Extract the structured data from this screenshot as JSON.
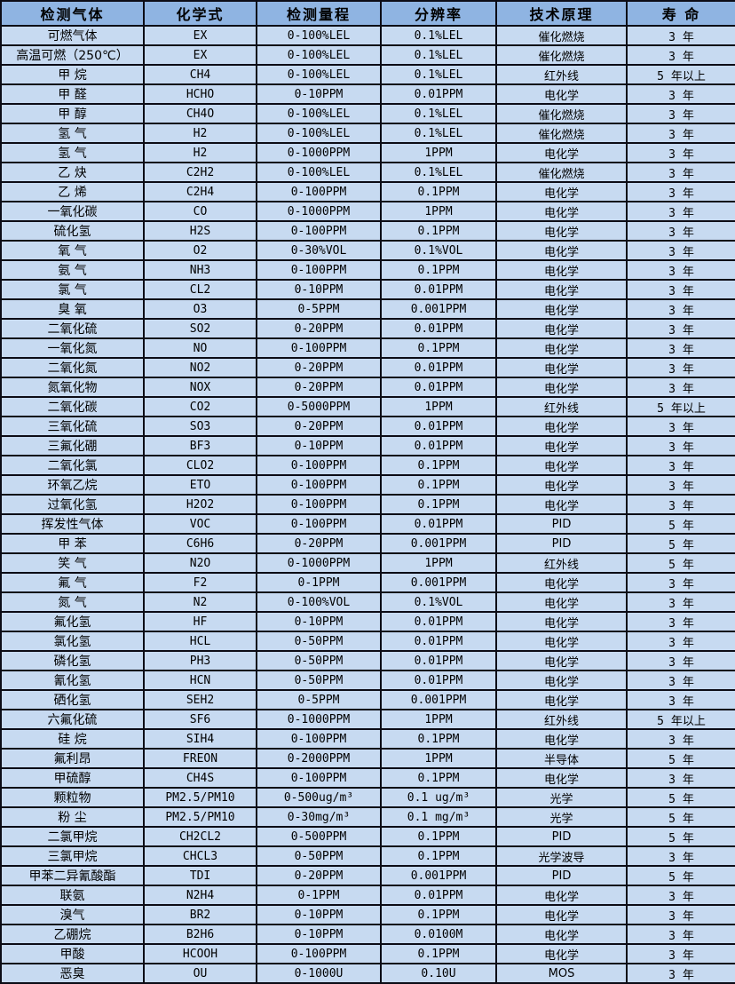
{
  "table": {
    "columns": [
      "检测气体",
      "化学式",
      "检测量程",
      "分辨率",
      "技术原理",
      "寿 命"
    ],
    "column_keys": [
      "gas",
      "formula",
      "range",
      "resolution",
      "principle",
      "life"
    ],
    "rows": [
      [
        "可燃气体",
        "EX",
        "0-100%LEL",
        "0.1%LEL",
        "催化燃烧",
        "3 年"
      ],
      [
        "高温可燃（250℃）",
        "EX",
        "0-100%LEL",
        "0.1%LEL",
        "催化燃烧",
        "3 年"
      ],
      [
        "甲 烷",
        "CH4",
        "0-100%LEL",
        "0.1%LEL",
        "红外线",
        "5 年以上"
      ],
      [
        "甲 醛",
        "HCHO",
        "0-10PPM",
        "0.01PPM",
        "电化学",
        "3 年"
      ],
      [
        "甲 醇",
        "CH4O",
        "0-100%LEL",
        "0.1%LEL",
        "催化燃烧",
        "3 年"
      ],
      [
        "氢 气",
        "H2",
        "0-100%LEL",
        "0.1%LEL",
        "催化燃烧",
        "3 年"
      ],
      [
        "氢 气",
        "H2",
        "0-1000PPM",
        "1PPM",
        "电化学",
        "3 年"
      ],
      [
        "乙 炔",
        "C2H2",
        "0-100%LEL",
        "0.1%LEL",
        "催化燃烧",
        "3 年"
      ],
      [
        "乙 烯",
        "C2H4",
        "0-100PPM",
        "0.1PPM",
        "电化学",
        "3 年"
      ],
      [
        "一氧化碳",
        "CO",
        "0-1000PPM",
        "1PPM",
        "电化学",
        "3 年"
      ],
      [
        "硫化氢",
        "H2S",
        "0-100PPM",
        "0.1PPM",
        "电化学",
        "3 年"
      ],
      [
        "氧 气",
        "O2",
        "0-30%VOL",
        "0.1%VOL",
        "电化学",
        "3 年"
      ],
      [
        "氨 气",
        "NH3",
        "0-100PPM",
        "0.1PPM",
        "电化学",
        "3 年"
      ],
      [
        "氯 气",
        "CL2",
        "0-10PPM",
        "0.01PPM",
        "电化学",
        "3 年"
      ],
      [
        "臭 氧",
        "O3",
        "0-5PPM",
        "0.001PPM",
        "电化学",
        "3 年"
      ],
      [
        "二氧化硫",
        "SO2",
        "0-20PPM",
        "0.01PPM",
        "电化学",
        "3 年"
      ],
      [
        "一氧化氮",
        "NO",
        "0-100PPM",
        "0.1PPM",
        "电化学",
        "3 年"
      ],
      [
        "二氧化氮",
        "NO2",
        "0-20PPM",
        "0.01PPM",
        "电化学",
        "3 年"
      ],
      [
        "氮氧化物",
        "NOX",
        "0-20PPM",
        "0.01PPM",
        "电化学",
        "3 年"
      ],
      [
        "二氧化碳",
        "CO2",
        "0-5000PPM",
        "1PPM",
        "红外线",
        "5 年以上"
      ],
      [
        "三氧化硫",
        "SO3",
        "0-20PPM",
        "0.01PPM",
        "电化学",
        "3 年"
      ],
      [
        "三氟化硼",
        "BF3",
        "0-10PPM",
        "0.01PPM",
        "电化学",
        "3 年"
      ],
      [
        "二氧化氯",
        "CLO2",
        "0-100PPM",
        "0.1PPM",
        "电化学",
        "3 年"
      ],
      [
        "环氧乙烷",
        "ETO",
        "0-100PPM",
        "0.1PPM",
        "电化学",
        "3 年"
      ],
      [
        "过氧化氢",
        "H2O2",
        "0-100PPM",
        "0.1PPM",
        "电化学",
        "3 年"
      ],
      [
        "挥发性气体",
        "VOC",
        "0-100PPM",
        "0.01PPM",
        "PID",
        "5 年"
      ],
      [
        "甲 苯",
        "C6H6",
        "0-20PPM",
        "0.001PPM",
        "PID",
        "5 年"
      ],
      [
        "笑 气",
        "N2O",
        "0-1000PPM",
        "1PPM",
        "红外线",
        "5 年"
      ],
      [
        "氟 气",
        "F2",
        "0-1PPM",
        "0.001PPM",
        "电化学",
        "3 年"
      ],
      [
        "氮 气",
        "N2",
        "0-100%VOL",
        "0.1%VOL",
        "电化学",
        "3 年"
      ],
      [
        "氟化氢",
        "HF",
        "0-10PPM",
        "0.01PPM",
        "电化学",
        "3 年"
      ],
      [
        "氯化氢",
        "HCL",
        "0-50PPM",
        "0.01PPM",
        "电化学",
        "3 年"
      ],
      [
        "磷化氢",
        "PH3",
        "0-50PPM",
        "0.01PPM",
        "电化学",
        "3 年"
      ],
      [
        "氰化氢",
        "HCN",
        "0-50PPM",
        "0.01PPM",
        "电化学",
        "3 年"
      ],
      [
        "硒化氢",
        "SEH2",
        "0-5PPM",
        "0.001PPM",
        "电化学",
        "3 年"
      ],
      [
        "六氟化硫",
        "SF6",
        "0-1000PPM",
        "1PPM",
        "红外线",
        "5 年以上"
      ],
      [
        "硅 烷",
        "SIH4",
        "0-100PPM",
        "0.1PPM",
        "电化学",
        "3 年"
      ],
      [
        "氟利昂",
        "FREON",
        "0-2000PPM",
        "1PPM",
        "半导体",
        "5 年"
      ],
      [
        "甲硫醇",
        "CH4S",
        "0-100PPM",
        "0.1PPM",
        "电化学",
        "3 年"
      ],
      [
        "颗粒物",
        "PM2.5/PM10",
        "0-500ug/m³",
        "0.1 ug/m³",
        "光学",
        "5 年"
      ],
      [
        "粉 尘",
        "PM2.5/PM10",
        "0-30mg/m³",
        "0.1 mg/m³",
        "光学",
        "5 年"
      ],
      [
        "二氯甲烷",
        "CH2CL2",
        "0-500PPM",
        "0.1PPM",
        "PID",
        "5 年"
      ],
      [
        "三氯甲烷",
        "CHCL3",
        "0-50PPM",
        "0.1PPM",
        "光学波导",
        "3 年"
      ],
      [
        "甲苯二异氰酸酯",
        "TDI",
        "0-20PPM",
        "0.001PPM",
        "PID",
        "5 年"
      ],
      [
        "联氨",
        "N2H4",
        "0-1PPM",
        "0.01PPM",
        "电化学",
        "3 年"
      ],
      [
        "溴气",
        "BR2",
        "0-10PPM",
        "0.1PPM",
        "电化学",
        "3 年"
      ],
      [
        "乙硼烷",
        "B2H6",
        "0-10PPM",
        "0.0100M",
        "电化学",
        "3 年"
      ],
      [
        "甲酸",
        "HCOOH",
        "0-100PPM",
        "0.1PPM",
        "电化学",
        "3 年"
      ],
      [
        "恶臭",
        "OU",
        "0-1000U",
        "0.10U",
        "MOS",
        "3 年"
      ]
    ]
  },
  "colors": {
    "header_bg": "#8fb4e2",
    "row_bg": "#c7daf1",
    "border": "#0c0c16",
    "text": "#000000"
  }
}
